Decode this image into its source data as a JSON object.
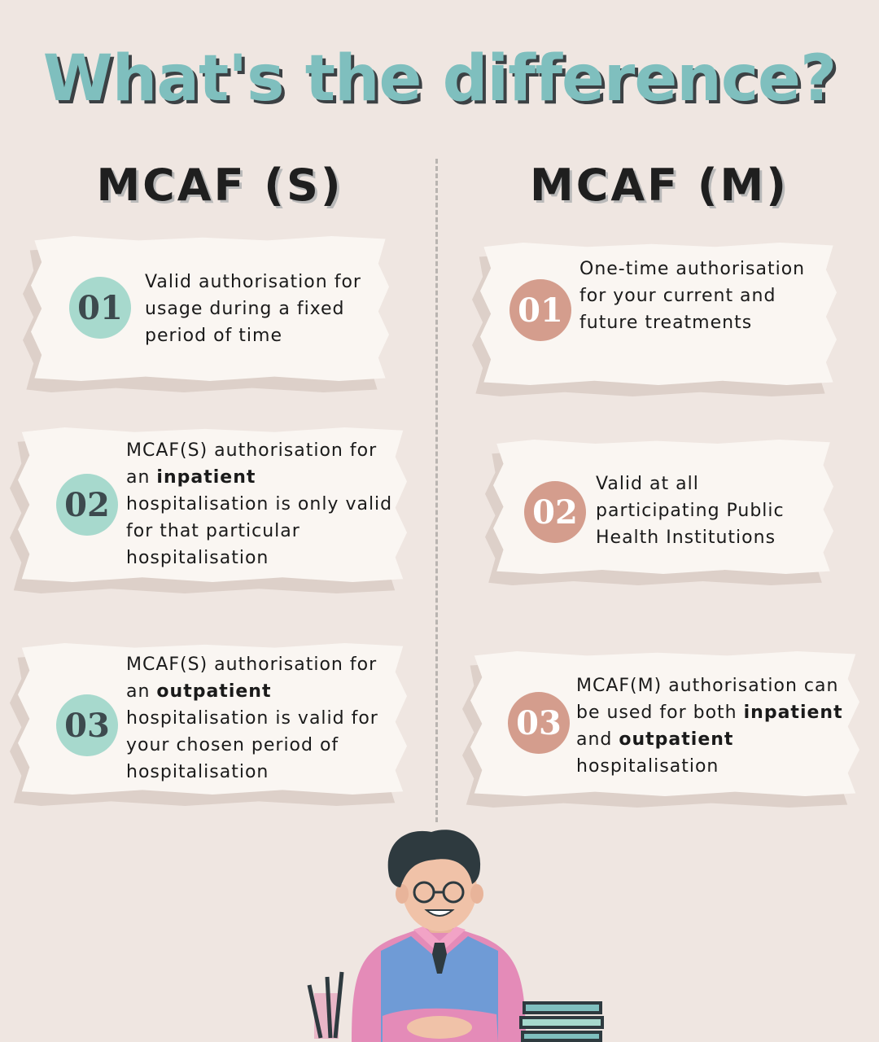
{
  "title": "What's the difference?",
  "columns": {
    "left": {
      "heading": "MCAF (S)",
      "cards": [
        {
          "num": "01",
          "text": "Valid authorisation for usage during a fixed period of time"
        },
        {
          "num": "02",
          "text_before": "MCAF(S) authorisation for an ",
          "bold": "inpatient",
          "text_after": " hospitalisation is only valid for that particular hospitalisation"
        },
        {
          "num": "03",
          "text_before": "MCAF(S) authorisation for an ",
          "bold": "outpatient",
          "text_after": " hospitalisation is valid for your chosen period of hospitalisation"
        }
      ]
    },
    "right": {
      "heading": "MCAF (M)",
      "cards": [
        {
          "num": "01",
          "text": "One-time authorisation for your current and future treatments"
        },
        {
          "num": "02",
          "text": "Valid at all participating Public Health Institutions"
        },
        {
          "num": "03",
          "text_before": "MCAF(M) authorisation can be used for both ",
          "bold1": "inpatient",
          "text_mid": " and ",
          "bold2": "outpatient",
          "text_after": " hospitalisation"
        }
      ]
    }
  },
  "colors": {
    "background": "#efe6e1",
    "title": "#7fbfbe",
    "badge_left": "#a7d9cd",
    "badge_right": "#d49d8d",
    "paper": "#faf6f2"
  }
}
